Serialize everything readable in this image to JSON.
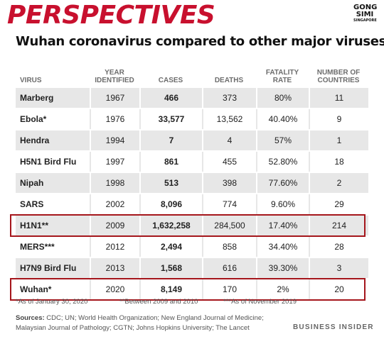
{
  "brand": "PERSPECTIVES",
  "logo": {
    "line1": "GONG",
    "line2": "SIMI",
    "line3": "SINGAPORE"
  },
  "chart_data": {
    "type": "table",
    "title": "Wuhan coronavirus compared to other major viruses",
    "columns": [
      "VIRUS",
      "YEAR IDENTIFIED",
      "CASES",
      "DEATHS",
      "FATALITY RATE",
      "NUMBER OF COUNTRIES"
    ],
    "rows": [
      {
        "virus": "Marberg",
        "year": "1967",
        "cases": "466",
        "deaths": "373",
        "fatality": "80%",
        "countries": "11"
      },
      {
        "virus": "Ebola*",
        "year": "1976",
        "cases": "33,577",
        "deaths": "13,562",
        "fatality": "40.40%",
        "countries": "9"
      },
      {
        "virus": "Hendra",
        "year": "1994",
        "cases": "7",
        "deaths": "4",
        "fatality": "57%",
        "countries": "1"
      },
      {
        "virus": "H5N1 Bird Flu",
        "year": "1997",
        "cases": "861",
        "deaths": "455",
        "fatality": "52.80%",
        "countries": "18"
      },
      {
        "virus": "Nipah",
        "year": "1998",
        "cases": "513",
        "deaths": "398",
        "fatality": "77.60%",
        "countries": "2"
      },
      {
        "virus": "SARS",
        "year": "2002",
        "cases": "8,096",
        "deaths": "774",
        "fatality": "9.60%",
        "countries": "29"
      },
      {
        "virus": "H1N1**",
        "year": "2009",
        "cases": "1,632,258",
        "deaths": "284,500",
        "fatality": "17.40%",
        "countries": "214",
        "highlight": true
      },
      {
        "virus": "MERS***",
        "year": "2012",
        "cases": "2,494",
        "deaths": "858",
        "fatality": "34.40%",
        "countries": "28"
      },
      {
        "virus": "H7N9 Bird Flu",
        "year": "2013",
        "cases": "1,568",
        "deaths": "616",
        "fatality": "39.30%",
        "countries": "3"
      },
      {
        "virus": "Wuhan*",
        "year": "2020",
        "cases": "8,149",
        "deaths": "170",
        "fatality": "2%",
        "countries": "20",
        "highlight": true
      }
    ],
    "highlight_color": "#a5161c"
  },
  "footnotes": [
    "*As of January 30, 2020",
    "**Between 2009 and 2010",
    "***As of November 2019"
  ],
  "sources_label": "Sources:",
  "sources_text": "CDC; UN; World Health Organization; New England Journal of Medicine; Malaysian Journal of Pathology; CGTN; Johns Hopkins University; The Lancet",
  "publisher": "BUSINESS INSIDER",
  "colors": {
    "brand": "#c8102e",
    "row_shade": "#e7e7e7",
    "header_text": "#6d6d6d"
  }
}
